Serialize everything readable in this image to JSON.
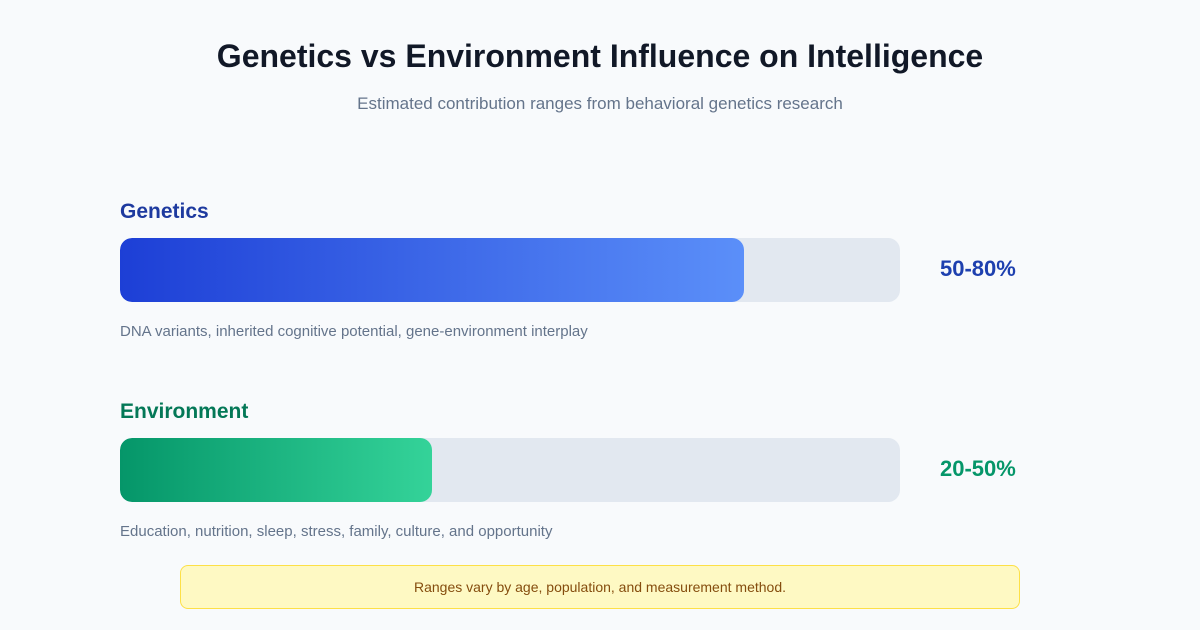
{
  "header": {
    "title": "Genetics vs Environment Influence on Intelligence",
    "subtitle": "Estimated contribution ranges from behavioral genetics research"
  },
  "items": [
    {
      "label": "Genetics",
      "range": "50-80%",
      "fill": 80,
      "description": "DNA variants, inherited cognitive potential, gene-environment interplay",
      "color": "#1e3a9f",
      "range_color": "#1e40af",
      "gradient": [
        "#1d3fd6",
        "#5b8ff9"
      ]
    },
    {
      "label": "Environment",
      "range": "20-50%",
      "fill": 40,
      "description": "Education, nutrition, sleep, stress, family, culture, and opportunity",
      "color": "#047857",
      "range_color": "#059669",
      "gradient": [
        "#059669",
        "#34d399"
      ]
    }
  ],
  "note": "Ranges vary by age, population, and measurement method."
}
